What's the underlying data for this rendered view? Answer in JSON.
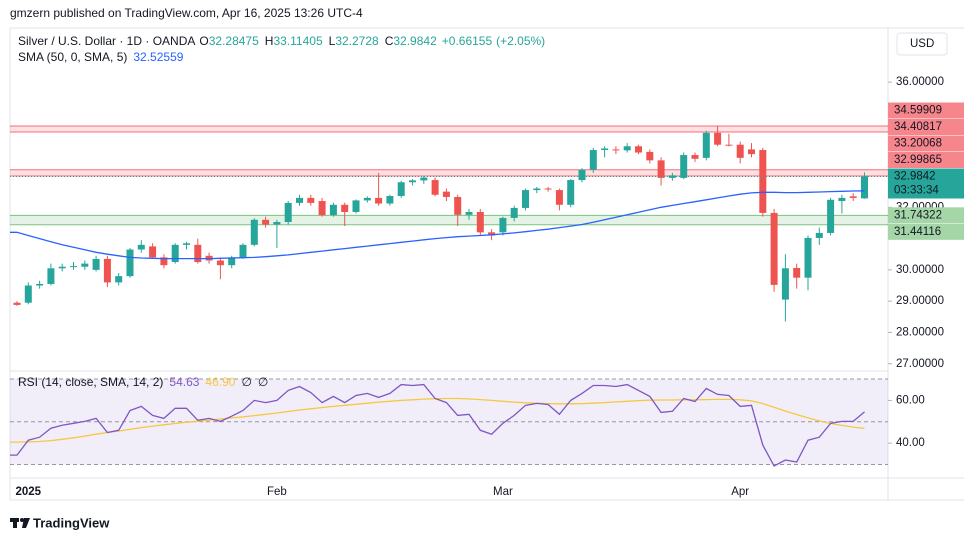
{
  "header": {
    "publisher": "gmzern published on TradingView.com, Apr 16, 2025 13:26 UTC-4",
    "footer": "TradingView"
  },
  "chart_data": {
    "type": "candlestick",
    "title": "Silver / U.S. Dollar · 1D · OANDA",
    "currency": "USD",
    "categories": [
      null,
      "2025",
      null,
      null,
      null,
      null,
      null,
      null,
      null,
      null,
      null,
      null,
      null,
      null,
      null,
      null,
      null,
      null,
      null,
      null,
      null,
      null,
      null,
      "Feb",
      null,
      null,
      null,
      null,
      null,
      null,
      null,
      null,
      null,
      null,
      null,
      null,
      null,
      null,
      null,
      null,
      null,
      null,
      null,
      "Mar",
      null,
      null,
      null,
      null,
      null,
      null,
      null,
      null,
      null,
      null,
      null,
      null,
      null,
      null,
      null,
      null,
      null,
      null,
      null,
      null,
      "Apr",
      null,
      null,
      null,
      null,
      null,
      null,
      null,
      null,
      null,
      null,
      null
    ],
    "open": [
      28.95,
      28.95,
      29.5,
      29.55,
      30.05,
      30.1,
      30.1,
      30.0,
      30.35,
      29.6,
      29.8,
      30.65,
      30.75,
      30.4,
      30.25,
      30.8,
      30.8,
      30.45,
      30.3,
      30.15,
      30.4,
      30.8,
      31.6,
      31.45,
      31.53,
      32.14,
      32.3,
      32.2,
      31.75,
      32.08,
      31.85,
      32.22,
      32.3,
      32.12,
      32.36,
      32.8,
      32.86,
      32.87,
      32.5,
      32.33,
      31.76,
      31.85,
      31.2,
      31.2,
      31.66,
      31.98,
      32.55,
      32.6,
      32.55,
      32.08,
      32.87,
      33.2,
      33.83,
      33.85,
      33.82,
      33.95,
      33.77,
      33.5,
      32.94,
      32.94,
      33.67,
      33.58,
      34.38,
      34.0,
      34.0,
      33.85,
      33.83,
      31.82,
      29.05,
      30.06,
      29.75,
      31.02,
      31.18,
      32.2,
      32.35,
      32.28475
    ],
    "high": [
      29.0,
      29.6,
      29.65,
      30.2,
      30.2,
      30.25,
      30.3,
      30.45,
      30.45,
      29.9,
      30.7,
      30.95,
      30.85,
      30.5,
      30.85,
      30.9,
      31.0,
      30.55,
      30.4,
      30.45,
      30.85,
      31.65,
      31.7,
      31.6,
      32.2,
      32.4,
      32.4,
      32.3,
      32.15,
      32.15,
      32.25,
      32.35,
      33.1,
      32.4,
      32.85,
      32.9,
      33.0,
      32.95,
      32.6,
      32.4,
      31.95,
      31.95,
      31.3,
      31.7,
      32.05,
      32.6,
      32.65,
      32.65,
      32.6,
      32.9,
      33.25,
      33.9,
      33.95,
      33.95,
      34.05,
      34.0,
      33.85,
      33.6,
      33.1,
      33.75,
      33.75,
      34.45,
      34.6,
      34.35,
      34.1,
      34.05,
      33.9,
      31.95,
      30.5,
      30.2,
      31.1,
      31.35,
      32.3,
      32.4,
      32.45,
      33.11405
    ],
    "low": [
      28.85,
      28.9,
      29.4,
      29.5,
      29.95,
      30.0,
      30.0,
      29.95,
      29.45,
      29.5,
      29.75,
      30.55,
      30.35,
      30.05,
      30.2,
      30.65,
      30.2,
      30.2,
      29.7,
      30.05,
      30.35,
      30.75,
      31.35,
      30.7,
      31.45,
      32.05,
      32.05,
      31.7,
      31.7,
      31.4,
      31.8,
      32.15,
      32.05,
      32.05,
      32.3,
      32.7,
      32.75,
      32.35,
      32.2,
      31.4,
      31.6,
      31.1,
      30.95,
      31.1,
      31.55,
      31.9,
      32.45,
      32.5,
      31.9,
      32.0,
      32.8,
      33.1,
      33.6,
      33.7,
      33.75,
      33.7,
      33.4,
      32.7,
      32.85,
      32.9,
      33.45,
      33.5,
      33.95,
      33.95,
      33.4,
      33.6,
      31.7,
      29.3,
      28.35,
      29.4,
      29.35,
      30.8,
      31.1,
      31.8,
      32.2,
      32.2728
    ],
    "close": [
      28.88,
      29.5,
      29.55,
      30.05,
      30.1,
      30.12,
      30.2,
      30.35,
      29.6,
      29.8,
      30.65,
      30.8,
      30.4,
      30.15,
      30.8,
      30.85,
      30.25,
      30.3,
      30.15,
      30.4,
      30.8,
      31.6,
      31.45,
      31.53,
      32.14,
      32.3,
      32.14,
      31.75,
      32.08,
      31.85,
      32.22,
      32.3,
      32.12,
      32.36,
      32.8,
      32.86,
      32.95,
      32.4,
      32.33,
      31.76,
      31.85,
      31.2,
      31.1,
      31.66,
      31.98,
      32.55,
      32.6,
      32.58,
      32.08,
      32.87,
      33.2,
      33.83,
      33.88,
      33.82,
      33.95,
      33.75,
      33.5,
      32.94,
      33.02,
      33.67,
      33.55,
      34.38,
      34.0,
      33.97,
      33.58,
      33.7,
      31.82,
      29.52,
      30.05,
      29.75,
      31.02,
      31.18,
      32.24,
      32.3,
      32.3,
      32.9842
    ],
    "colors": {
      "up": "#26a69a",
      "down": "#ef5350"
    },
    "ohlc_labels": [
      "O",
      "H",
      "L",
      "C"
    ],
    "change": "+0.66155",
    "change_pct": "(+2.05%)",
    "countdown": "03:33:34",
    "ylim": [
      26.8,
      37.73
    ],
    "yticks": [
      {
        "value": 36,
        "label": "36.00000"
      },
      {
        "value": 32,
        "label": "32.00000"
      },
      {
        "value": 30,
        "label": "30.00000"
      },
      {
        "value": 29,
        "label": "29.00000"
      },
      {
        "value": 28,
        "label": "28.00000"
      },
      {
        "value": 27,
        "label": "27.00000"
      }
    ],
    "zones": [
      {
        "top": 34.59909,
        "bottom": 34.40817,
        "color": "#f23645"
      },
      {
        "top": 33.20068,
        "bottom": 32.99865,
        "color": "#f23645"
      },
      {
        "top": 31.74322,
        "bottom": 31.44116,
        "color": "#4caf50"
      }
    ],
    "sma": {
      "name": "SMA (50, 0, SMA, 5)",
      "color": "#2962ff",
      "values": [
        31.2,
        31.1,
        31.0,
        30.9,
        30.8,
        30.72,
        30.64,
        30.56,
        30.5,
        30.45,
        30.4,
        30.38,
        30.37,
        30.36,
        30.36,
        30.36,
        30.36,
        30.36,
        30.37,
        30.38,
        30.39,
        30.4,
        30.42,
        30.45,
        30.48,
        30.52,
        30.56,
        30.6,
        30.64,
        30.68,
        30.72,
        30.76,
        30.8,
        30.84,
        30.88,
        30.92,
        30.96,
        31.0,
        31.03,
        31.06,
        31.08,
        31.1,
        31.12,
        31.15,
        31.18,
        31.22,
        31.26,
        31.3,
        31.35,
        31.4,
        31.45,
        31.52,
        31.6,
        31.68,
        31.76,
        31.84,
        31.92,
        32.0,
        32.06,
        32.12,
        32.18,
        32.24,
        32.3,
        32.36,
        32.42,
        32.46,
        32.48,
        32.48,
        32.47,
        32.47,
        32.48,
        32.49,
        32.5,
        32.51,
        32.52,
        32.52559
      ]
    },
    "rsi": {
      "name": "RSI (14, close, SMA, 14, 2)",
      "color": "#7e57c2",
      "values": [
        34.4,
        41.4,
        42.8,
        47,
        48.4,
        49.3,
        50.2,
        51.6,
        45,
        46,
        55.3,
        57.2,
        53,
        51.6,
        56.3,
        56.3,
        50.7,
        51.6,
        50.2,
        52.6,
        55.3,
        60,
        59,
        60,
        64.7,
        66.5,
        63.7,
        59,
        61.9,
        59,
        62.3,
        63.3,
        61.4,
        63.3,
        67.4,
        67,
        67.4,
        60.9,
        59,
        53,
        53.5,
        46,
        44.2,
        49.3,
        53,
        57.7,
        58.6,
        58.1,
        53.5,
        60,
        63.3,
        67,
        67,
        66.5,
        67.4,
        64.7,
        61.9,
        54.4,
        54.9,
        60.9,
        59.5,
        65.6,
        62.8,
        62.3,
        57.2,
        57.7,
        39.1,
        29.3,
        32.1,
        31.2,
        41.4,
        42.8,
        49.3,
        50.2,
        50.2,
        54.63
      ],
      "ma": {
        "color": "#f5c842",
        "last_label": "46.90",
        "values": [
          40.5,
          40.6,
          40.8,
          41.2,
          41.8,
          42.5,
          43.3,
          44.2,
          45,
          45.7,
          46.5,
          47.3,
          48,
          48.6,
          49.2,
          49.8,
          50.3,
          50.8,
          51.3,
          51.8,
          52.3,
          52.9,
          53.5,
          54.1,
          54.8,
          55.5,
          56.1,
          56.7,
          57.2,
          57.7,
          58.2,
          58.7,
          59.2,
          59.6,
          60,
          60.3,
          60.6,
          60.8,
          60.9,
          60.9,
          60.7,
          60.4,
          60,
          59.6,
          59.2,
          58.9,
          58.7,
          58.5,
          58.4,
          58.4,
          58.5,
          58.7,
          59,
          59.3,
          59.6,
          59.9,
          60.1,
          60.2,
          60.2,
          60.3,
          60.3,
          60.4,
          60.5,
          60.5,
          60.3,
          59.8,
          58.5,
          56.8,
          55,
          53.4,
          51.8,
          50.4,
          49.2,
          48.3,
          47.5,
          46.9
        ]
      },
      "extras": [
        "∅",
        "∅"
      ],
      "ylim": [
        23.7,
        73.3
      ],
      "yticks": [
        {
          "value": 60,
          "label": "60.00"
        },
        {
          "value": 40,
          "label": "40.00"
        }
      ],
      "bands": [
        30,
        50,
        70
      ]
    }
  }
}
